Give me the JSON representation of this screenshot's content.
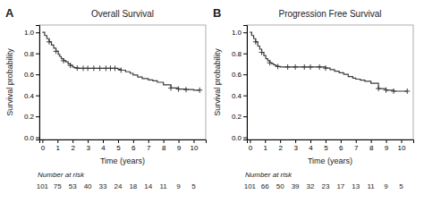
{
  "chart_data": [
    {
      "type": "line",
      "title": "Overall Survival",
      "annotations": [
        "A"
      ],
      "xlabel": "Time (years)",
      "ylabel": "Survival probability",
      "series": [
        {
          "type": "line",
          "line_style": "steps",
          "color": "#3c3c3c",
          "x": [
            0,
            0.15,
            0.3,
            0.45,
            0.6,
            0.75,
            0.9,
            1.05,
            1.15,
            1.25,
            1.4,
            1.55,
            1.7,
            1.85,
            2.0,
            2.1,
            2.2,
            2.3,
            2.4,
            2.5,
            2.6,
            2.7,
            2.8,
            2.9,
            3.0,
            3.2,
            3.4,
            3.6,
            3.8,
            4.0,
            4.2,
            4.4,
            4.6,
            4.8,
            5.0,
            5.2,
            5.5,
            5.8,
            6.0,
            6.3,
            6.6,
            7.0,
            7.3,
            7.6,
            8.0,
            8.5,
            9.0,
            9.5,
            10.0,
            10.4
          ],
          "values": [
            1.0,
            0.97,
            0.94,
            0.91,
            0.88,
            0.85,
            0.82,
            0.79,
            0.77,
            0.75,
            0.73,
            0.72,
            0.7,
            0.685,
            0.67,
            0.665,
            0.662,
            0.66,
            0.658,
            0.658,
            0.658,
            0.658,
            0.658,
            0.658,
            0.658,
            0.658,
            0.658,
            0.658,
            0.658,
            0.658,
            0.658,
            0.658,
            0.658,
            0.658,
            0.65,
            0.64,
            0.625,
            0.61,
            0.595,
            0.575,
            0.56,
            0.548,
            0.538,
            0.525,
            0.5,
            0.47,
            0.46,
            0.455,
            0.45,
            0.45
          ]
        },
        {
          "type": "scatter",
          "marker": "plus",
          "color": "#3c3c3c",
          "x": [
            0.45,
            0.9,
            1.4,
            1.85,
            2.3,
            2.7,
            3.0,
            3.4,
            3.8,
            4.2,
            4.5,
            4.8,
            5.2,
            8.5,
            9.0,
            9.5,
            10.4
          ],
          "values": [
            0.91,
            0.82,
            0.73,
            0.685,
            0.66,
            0.658,
            0.658,
            0.658,
            0.658,
            0.658,
            0.658,
            0.658,
            0.64,
            0.47,
            0.46,
            0.455,
            0.45
          ]
        }
      ],
      "at_risk": {
        "label": "Number at risk",
        "x": [
          0,
          1,
          2,
          3,
          4,
          5,
          6,
          7,
          8,
          9,
          10
        ],
        "values": [
          101,
          75,
          53,
          40,
          33,
          24,
          18,
          14,
          11,
          9,
          5
        ]
      },
      "xlim": [
        -0.2,
        10.8
      ],
      "ylim": [
        -0.02,
        1.07
      ],
      "xticks": [
        0,
        1,
        2,
        3,
        4,
        5,
        6,
        7,
        8,
        9,
        10
      ],
      "yticks": [
        {
          "value": 0.0,
          "label": "0.0"
        },
        {
          "value": 0.2,
          "label": "0.2"
        },
        {
          "value": 0.4,
          "label": "0.4"
        },
        {
          "value": 0.6,
          "label": "0.6"
        },
        {
          "value": 0.8,
          "label": "0.8"
        },
        {
          "value": 1.0,
          "label": "1.0"
        }
      ],
      "grid": false
    },
    {
      "type": "line",
      "title": "Progression Free Survival",
      "annotations": [
        "B"
      ],
      "xlabel": "Time (years)",
      "ylabel": "Survival probability",
      "series": [
        {
          "type": "line",
          "line_style": "steps",
          "color": "#3c3c3c",
          "x": [
            0,
            0.12,
            0.25,
            0.38,
            0.52,
            0.65,
            0.78,
            0.92,
            1.05,
            1.18,
            1.32,
            1.45,
            1.58,
            1.72,
            1.85,
            2.0,
            2.2,
            2.5,
            2.8,
            3.0,
            3.3,
            3.6,
            4.0,
            4.2,
            4.4,
            4.6,
            4.8,
            5.0,
            5.3,
            5.6,
            5.9,
            6.2,
            6.5,
            6.8,
            7.0,
            7.3,
            7.6,
            8.0,
            8.5,
            9.0,
            9.5,
            10.0,
            10.4
          ],
          "values": [
            1.0,
            0.97,
            0.94,
            0.91,
            0.87,
            0.84,
            0.81,
            0.78,
            0.75,
            0.73,
            0.71,
            0.7,
            0.69,
            0.68,
            0.675,
            0.67,
            0.67,
            0.67,
            0.67,
            0.67,
            0.67,
            0.67,
            0.67,
            0.67,
            0.67,
            0.67,
            0.67,
            0.66,
            0.645,
            0.63,
            0.615,
            0.6,
            0.58,
            0.565,
            0.555,
            0.545,
            0.535,
            0.515,
            0.465,
            0.45,
            0.44,
            0.44,
            0.44
          ]
        },
        {
          "type": "scatter",
          "marker": "plus",
          "color": "#3c3c3c",
          "x": [
            0.38,
            0.78,
            1.32,
            1.85,
            2.5,
            3.0,
            3.6,
            4.0,
            4.6,
            5.0,
            8.5,
            9.0,
            9.5,
            10.4
          ],
          "values": [
            0.91,
            0.81,
            0.71,
            0.675,
            0.67,
            0.67,
            0.67,
            0.67,
            0.67,
            0.66,
            0.465,
            0.45,
            0.44,
            0.44
          ]
        }
      ],
      "at_risk": {
        "label": "Number at risk",
        "x": [
          0,
          1,
          2,
          3,
          4,
          5,
          6,
          7,
          8,
          9,
          10
        ],
        "values": [
          101,
          66,
          50,
          39,
          32,
          23,
          17,
          13,
          11,
          9,
          5
        ]
      },
      "xlim": [
        -0.2,
        10.8
      ],
      "ylim": [
        -0.02,
        1.07
      ],
      "xticks": [
        0,
        1,
        2,
        3,
        4,
        5,
        6,
        7,
        8,
        9,
        10
      ],
      "yticks": [
        {
          "value": 0.0,
          "label": "0.0"
        },
        {
          "value": 0.2,
          "label": "0.2"
        },
        {
          "value": 0.4,
          "label": "0.4"
        },
        {
          "value": 0.6,
          "label": "0.6"
        },
        {
          "value": 0.8,
          "label": "0.8"
        },
        {
          "value": 1.0,
          "label": "1.0"
        }
      ],
      "grid": false
    }
  ]
}
